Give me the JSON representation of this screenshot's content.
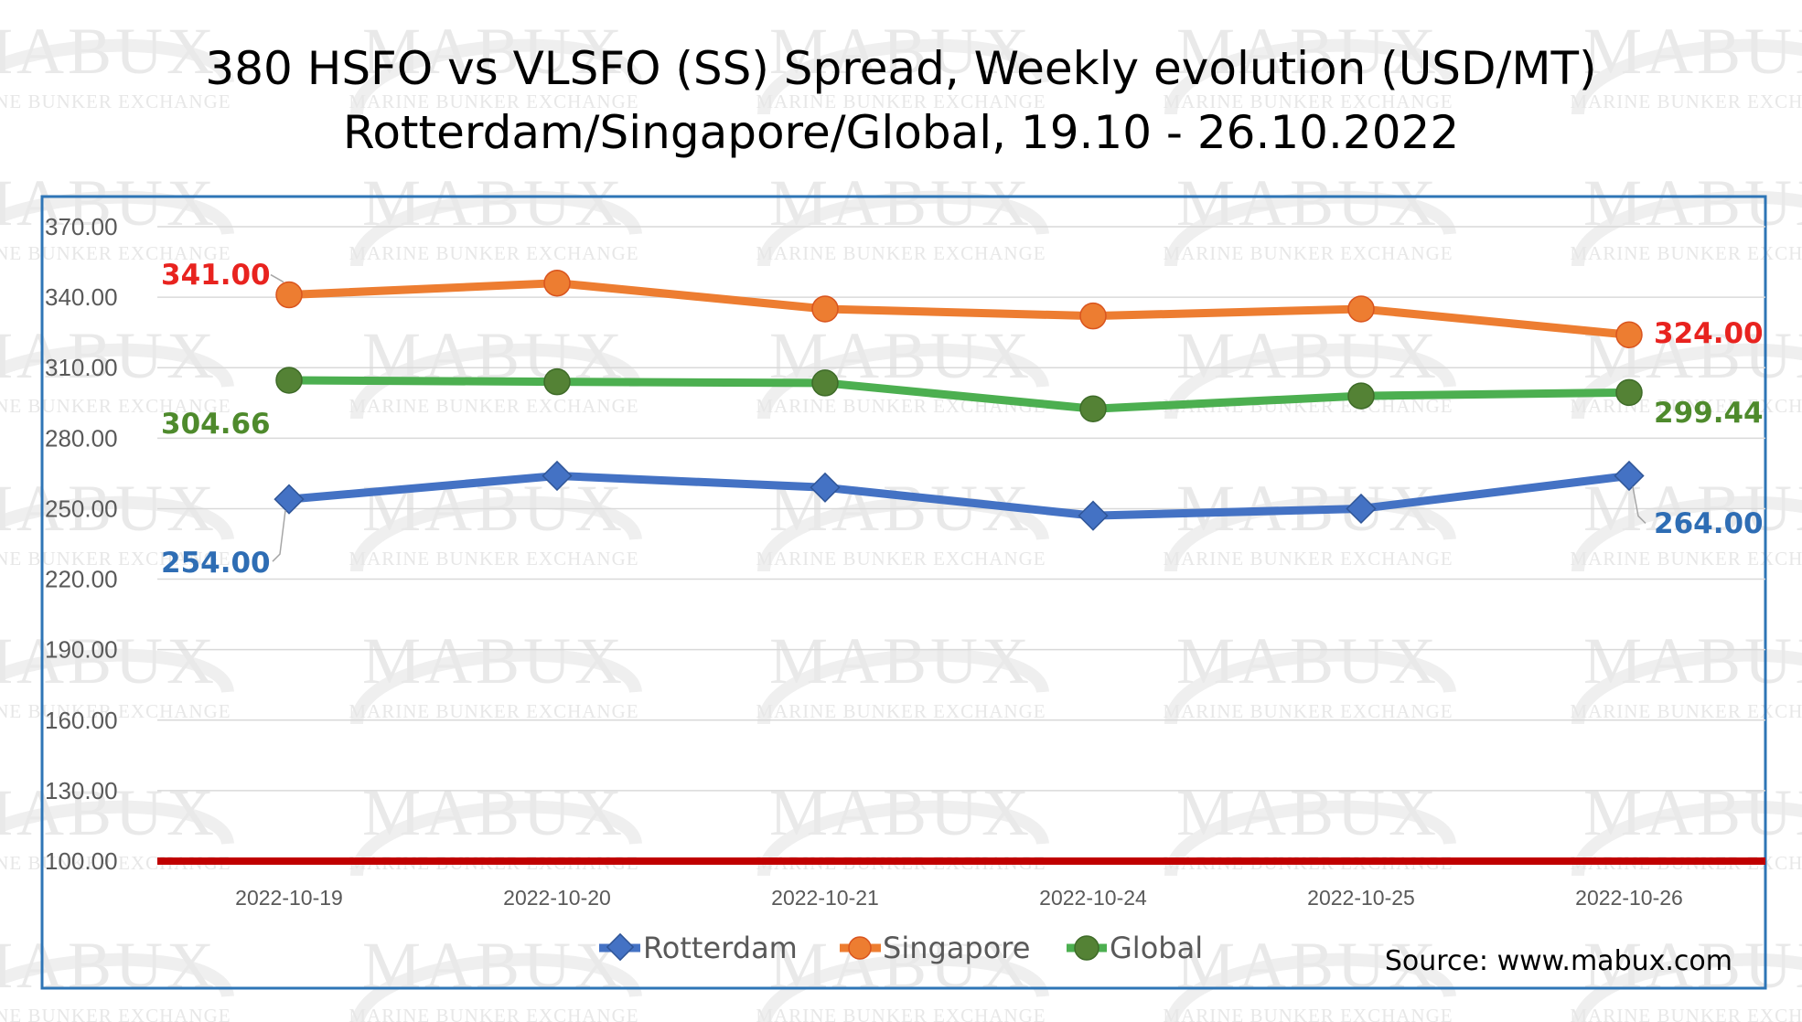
{
  "watermark": {
    "brand": "MABUX",
    "tagline": "MARINE BUNKER EXCHANGE"
  },
  "source": "Source: www.mabux.com",
  "colors": {
    "rotterdam": "#4472C4",
    "singapore": "#ED7D31",
    "global": "#4CAF50",
    "reference_line": "#C00000",
    "singapore_label": "#E8231F",
    "rotterdam_label": "#2E6DB4",
    "global_label": "#4E8A2C",
    "frame": "#2E75B6"
  },
  "chart_data": {
    "type": "line",
    "title": "380 HSFO vs VLSFO (SS) Spread, Weekly evolution (USD/MT)",
    "subtitle": "Rotterdam/Singapore/Global, 19.10 - 26.10.2022",
    "xlabel": "",
    "ylabel": "",
    "ylim": [
      100,
      370
    ],
    "yticks": [
      "100.00",
      "130.00",
      "160.00",
      "190.00",
      "220.00",
      "250.00",
      "280.00",
      "310.00",
      "340.00",
      "370.00"
    ],
    "grid": true,
    "legend_position": "bottom",
    "categories": [
      "2022-10-19",
      "2022-10-20",
      "2022-10-21",
      "2022-10-24",
      "2022-10-25",
      "2022-10-26"
    ],
    "series": [
      {
        "name": "Rotterdam",
        "marker": "diamond",
        "values": [
          254.0,
          264.0,
          259.0,
          247.0,
          250.0,
          264.0
        ],
        "labels": {
          "first": "254.00",
          "last": "264.00"
        }
      },
      {
        "name": "Singapore",
        "marker": "circle",
        "values": [
          341.0,
          346.0,
          335.0,
          332.0,
          335.0,
          324.0
        ],
        "labels": {
          "first": "341.00",
          "last": "324.00"
        }
      },
      {
        "name": "Global",
        "marker": "circle",
        "values": [
          304.66,
          304.0,
          303.5,
          292.5,
          298.0,
          299.44
        ],
        "labels": {
          "first": "304.66",
          "last": "299.44"
        }
      }
    ],
    "reference_line": {
      "value": 100
    }
  }
}
